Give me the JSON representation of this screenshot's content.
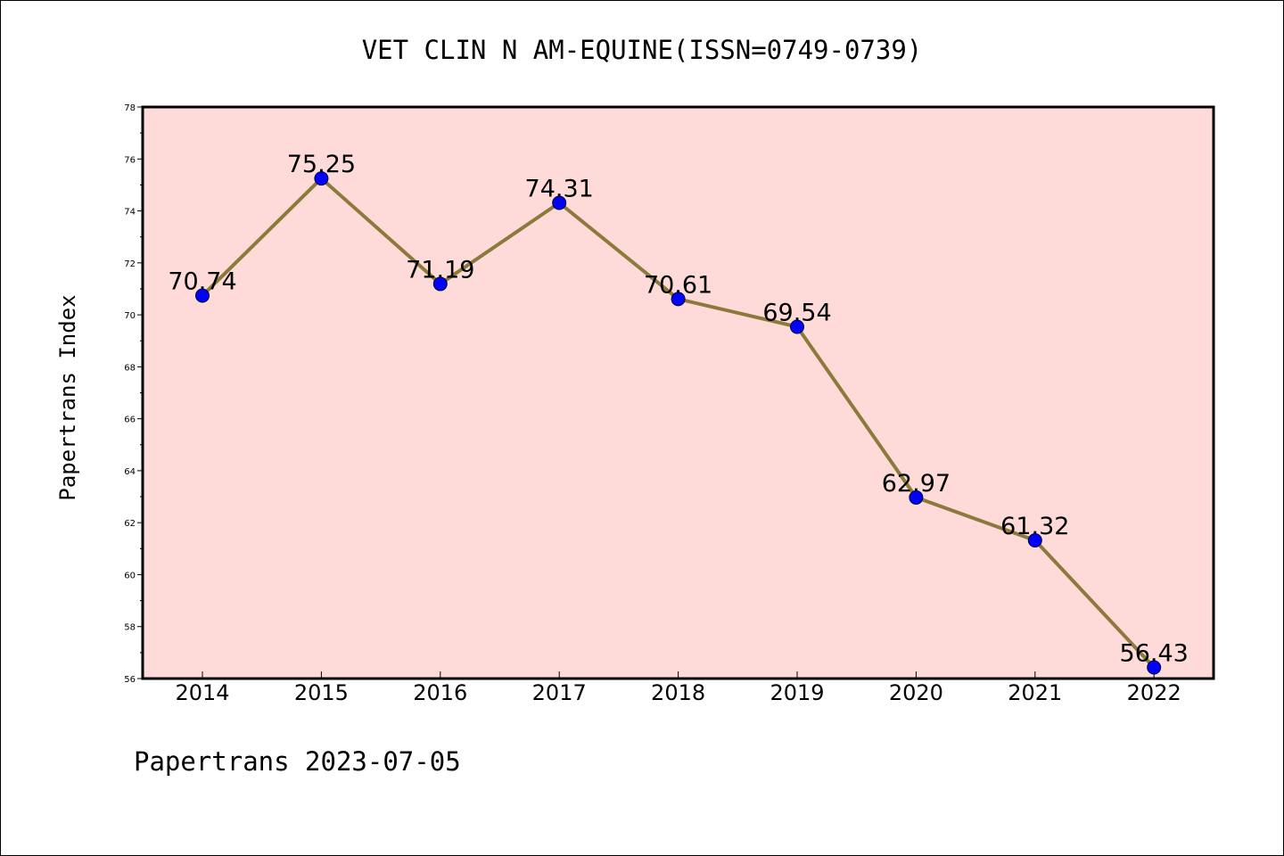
{
  "chart_data": {
    "type": "line",
    "title": "VET CLIN N AM-EQUINE(ISSN=0749-0739)",
    "xlabel": "",
    "ylabel": "Papertrans Index",
    "footer": "Papertrans 2023-07-05",
    "categories": [
      "2014",
      "2015",
      "2016",
      "2017",
      "2018",
      "2019",
      "2020",
      "2021",
      "2022"
    ],
    "series": [
      {
        "values": [
          70.74,
          75.25,
          71.19,
          74.31,
          70.61,
          69.54,
          62.97,
          61.32,
          56.43
        ],
        "labels": [
          "70.74",
          "75.25",
          "71.19",
          "74.31",
          "70.61",
          "69.54",
          "62.97",
          "61.32",
          "56.43"
        ]
      }
    ],
    "ylim": [
      56,
      78
    ],
    "yticks": [
      "56",
      "58",
      "60",
      "62",
      "64",
      "66",
      "68",
      "70",
      "72",
      "74",
      "76",
      "78"
    ],
    "grid": false,
    "colors": {
      "plot_background": "#fedbd8",
      "line": "#8c7a3c",
      "marker": "#0000ff",
      "axes": "#000000"
    }
  }
}
